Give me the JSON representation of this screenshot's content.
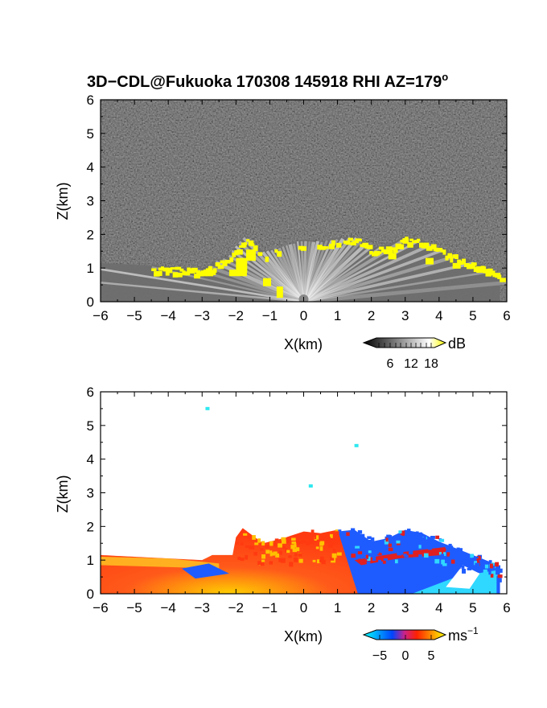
{
  "figure_title": "3D−CDL@Fukuoka 170308 145918 RHI AZ=179",
  "title_degree": "o",
  "chart_data": [
    {
      "type": "heatmap",
      "title": "3D−CDL@Fukuoka 170308 145918 RHI AZ=179°",
      "quantity": "signal intensity",
      "xlabel": "X(km)",
      "ylabel": "Z(km)",
      "xlim": [
        -6,
        6
      ],
      "ylim": [
        0,
        6
      ],
      "xticks": [
        "−6",
        "−5",
        "−4",
        "−3",
        "−2",
        "−1",
        "0",
        "1",
        "2",
        "3",
        "4",
        "5",
        "6"
      ],
      "yticks": [
        "0",
        "1",
        "2",
        "3",
        "4",
        "5",
        "6"
      ],
      "colorbar": {
        "unit": "dB",
        "ticks": [
          "6",
          "12",
          "18"
        ],
        "range": [
          0,
          20
        ],
        "colors": [
          "#000000",
          "#ffffff",
          "#ffff00"
        ]
      },
      "echo_top_profile_km": {
        "x": [
          -6,
          -5,
          -4,
          -3,
          -2.2,
          -1.8,
          -1.2,
          -0.6,
          0,
          0.5,
          1,
          1.5,
          2,
          2.5,
          3,
          3.5,
          4,
          4.5,
          5,
          5.5,
          5.8
        ],
        "z": [
          1.15,
          1.1,
          1.05,
          1.0,
          1.4,
          1.95,
          1.5,
          1.65,
          1.85,
          1.8,
          1.9,
          1.95,
          1.6,
          1.7,
          1.95,
          1.85,
          1.6,
          1.4,
          1.2,
          1.0,
          0.8
        ]
      },
      "grid": false
    },
    {
      "type": "heatmap",
      "quantity": "Doppler radial velocity",
      "xlabel": "X(km)",
      "ylabel": "Z(km)",
      "xlim": [
        -6,
        6
      ],
      "ylim": [
        0,
        6
      ],
      "xticks": [
        "−6",
        "−5",
        "−4",
        "−3",
        "−2",
        "−1",
        "0",
        "1",
        "2",
        "3",
        "4",
        "5",
        "6"
      ],
      "yticks": [
        "0",
        "1",
        "2",
        "3",
        "4",
        "5",
        "6"
      ],
      "colorbar": {
        "unit": "ms",
        "unit_exponent": "−1",
        "ticks": [
          "−5",
          "0",
          "5"
        ],
        "range": [
          -7,
          7
        ],
        "colors": [
          "#00ffff",
          "#0033ff",
          "#ff0000",
          "#ffff00"
        ]
      },
      "isolated_pixels_km": [
        {
          "x": -2.9,
          "z": 5.55
        },
        {
          "x": 1.5,
          "z": 4.45
        },
        {
          "x": 0.15,
          "z": 3.25
        }
      ],
      "grid": false
    }
  ],
  "legend1": {
    "unit": "dB",
    "ticks": [
      "6",
      "12",
      "18"
    ]
  },
  "legend2": {
    "unit": "ms",
    "unit_exp": "−1",
    "ticks": [
      "−5",
      "0",
      "5"
    ]
  }
}
